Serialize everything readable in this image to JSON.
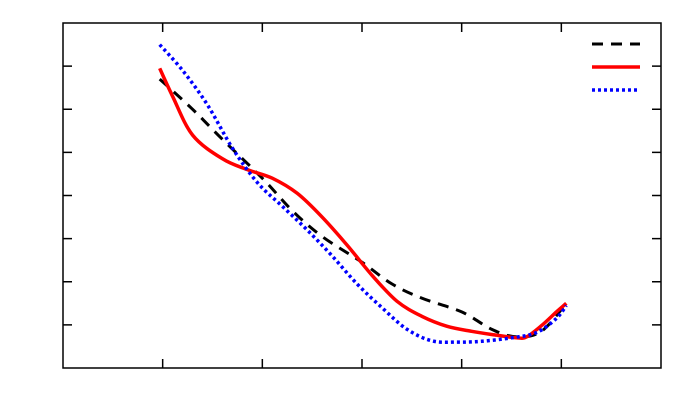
{
  "chart_data": {
    "type": "line",
    "title": "",
    "xlabel": "",
    "ylabel": "",
    "xlim": [
      0,
      6
    ],
    "ylim": [
      0,
      8
    ],
    "x_ticks": [
      1,
      2,
      3,
      4,
      5
    ],
    "y_ticks": [
      1,
      2,
      3,
      4,
      5,
      6,
      7
    ],
    "grid": false,
    "legend": "top-right",
    "series": [
      {
        "color": "#000000",
        "style": "dashed",
        "points": [
          [
            0.97,
            6.7
          ],
          [
            1.3,
            6.0
          ],
          [
            1.6,
            5.3
          ],
          [
            2.0,
            4.4
          ],
          [
            2.3,
            3.65
          ],
          [
            2.6,
            3.05
          ],
          [
            3.0,
            2.45
          ],
          [
            3.3,
            1.95
          ],
          [
            3.6,
            1.62
          ],
          [
            4.0,
            1.3
          ],
          [
            4.3,
            0.9
          ],
          [
            4.55,
            0.72
          ],
          [
            4.8,
            0.85
          ],
          [
            5.05,
            1.5
          ]
        ]
      },
      {
        "color": "#ff0000",
        "style": "solid",
        "points": [
          [
            0.97,
            6.95
          ],
          [
            1.1,
            6.3
          ],
          [
            1.3,
            5.4
          ],
          [
            1.6,
            4.85
          ],
          [
            1.85,
            4.6
          ],
          [
            2.1,
            4.4
          ],
          [
            2.35,
            4.05
          ],
          [
            2.6,
            3.5
          ],
          [
            2.85,
            2.85
          ],
          [
            3.1,
            2.15
          ],
          [
            3.35,
            1.55
          ],
          [
            3.6,
            1.2
          ],
          [
            3.85,
            0.97
          ],
          [
            4.1,
            0.85
          ],
          [
            4.35,
            0.76
          ],
          [
            4.55,
            0.7
          ],
          [
            4.65,
            0.72
          ],
          [
            4.8,
            0.98
          ],
          [
            4.95,
            1.3
          ],
          [
            5.05,
            1.5
          ]
        ]
      },
      {
        "color": "#0000ff",
        "style": "dotted",
        "points": [
          [
            0.97,
            7.5
          ],
          [
            1.2,
            6.9
          ],
          [
            1.45,
            6.1
          ],
          [
            1.7,
            5.1
          ],
          [
            1.95,
            4.3
          ],
          [
            2.2,
            3.75
          ],
          [
            2.45,
            3.2
          ],
          [
            2.7,
            2.6
          ],
          [
            2.95,
            1.95
          ],
          [
            3.2,
            1.4
          ],
          [
            3.45,
            0.9
          ],
          [
            3.7,
            0.63
          ],
          [
            3.95,
            0.6
          ],
          [
            4.2,
            0.62
          ],
          [
            4.5,
            0.7
          ],
          [
            4.75,
            0.82
          ],
          [
            4.95,
            1.15
          ],
          [
            5.05,
            1.45
          ]
        ]
      }
    ]
  }
}
